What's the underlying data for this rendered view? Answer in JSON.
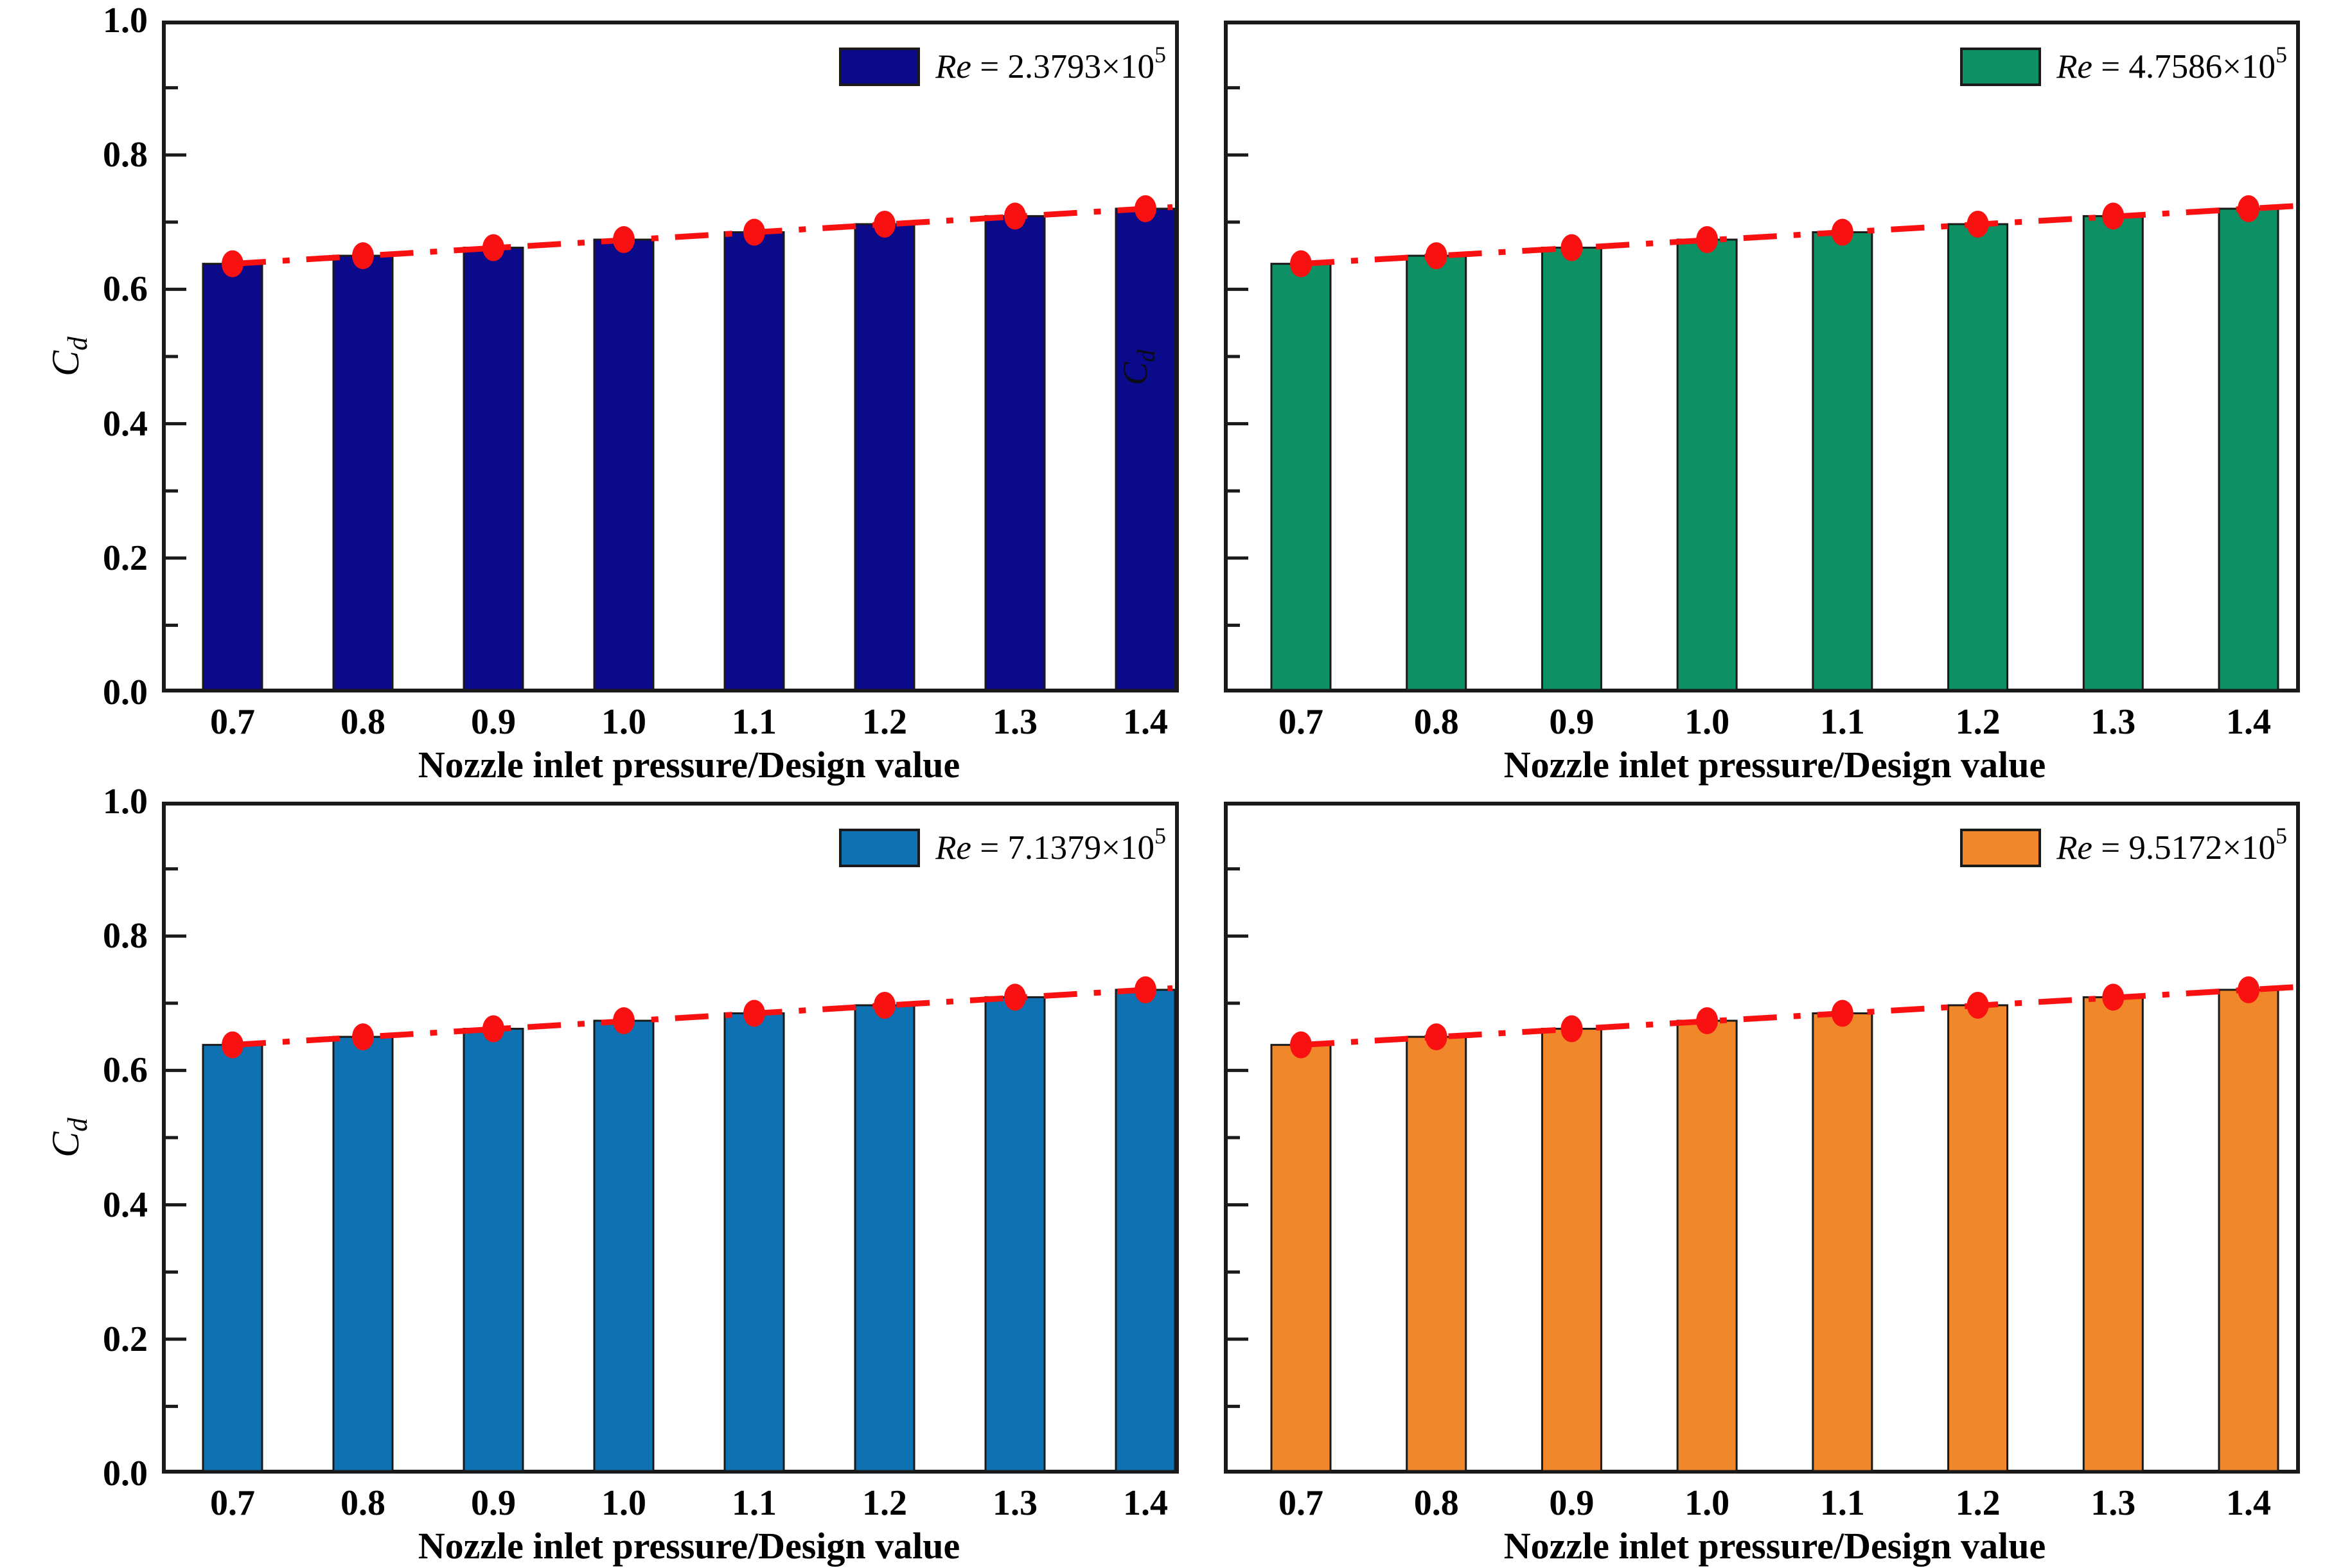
{
  "figure": {
    "background": "#ffffff",
    "frame_color": "#1a1a1a"
  },
  "y_axis": {
    "label_main": "C",
    "label_sub": "d",
    "ticks": [
      "1.0",
      "0.8",
      "0.6",
      "0.4",
      "0.2",
      "0.0"
    ],
    "tick_values": [
      1.0,
      0.8,
      0.6,
      0.4,
      0.2,
      0.0
    ],
    "minor_tick_values": [
      0.9,
      0.7,
      0.5,
      0.3,
      0.1
    ],
    "range": [
      0.0,
      1.0
    ]
  },
  "x_axis": {
    "title": "Nozzle inlet pressure/Design value"
  },
  "artifact": {
    "label_main": "C",
    "label_sub": "d"
  },
  "chart_data": [
    {
      "type": "bar",
      "panel": "top-left",
      "legend": {
        "re": "Re",
        "eq": " = 2.3793×10",
        "exp": "5",
        "full": "Re = 2.3793×10^5"
      },
      "bar_color": "#0a0a8a",
      "bar_edge_color": "#1a1a1a",
      "marker_color": "#f91010",
      "trend_line": {
        "style": "dash-dot",
        "color": "#f91010"
      },
      "categories": [
        "0.7",
        "0.8",
        "0.9",
        "1.0",
        "1.1",
        "1.2",
        "1.3",
        "1.4"
      ],
      "values": [
        0.638,
        0.65,
        0.662,
        0.674,
        0.685,
        0.697,
        0.709,
        0.72
      ],
      "xlabel": "Nozzle inlet pressure/Design value",
      "ylabel": "Cd",
      "ylim": [
        0.0,
        1.0
      ],
      "grid": false,
      "legend_position": "top-right"
    },
    {
      "type": "bar",
      "panel": "top-right",
      "legend": {
        "re": "Re",
        "eq": " = 4.7586×10",
        "exp": "5",
        "full": "Re = 4.7586×10^5"
      },
      "bar_color": "#0e9065",
      "bar_edge_color": "#1a1a1a",
      "marker_color": "#f91010",
      "trend_line": {
        "style": "dash-dot",
        "color": "#f91010"
      },
      "categories": [
        "0.7",
        "0.8",
        "0.9",
        "1.0",
        "1.1",
        "1.2",
        "1.3",
        "1.4"
      ],
      "values": [
        0.638,
        0.65,
        0.662,
        0.674,
        0.685,
        0.697,
        0.709,
        0.72
      ],
      "xlabel": "Nozzle inlet pressure/Design value",
      "ylabel": "Cd",
      "ylim": [
        0.0,
        1.0
      ],
      "grid": false,
      "legend_position": "top-right"
    },
    {
      "type": "bar",
      "panel": "bottom-left",
      "legend": {
        "re": "Re",
        "eq": " = 7.1379×10",
        "exp": "5",
        "full": "Re = 7.1379×10^5"
      },
      "bar_color": "#0e72b2",
      "bar_edge_color": "#1a1a1a",
      "marker_color": "#f91010",
      "trend_line": {
        "style": "dash-dot",
        "color": "#f91010"
      },
      "categories": [
        "0.7",
        "0.8",
        "0.9",
        "1.0",
        "1.1",
        "1.2",
        "1.3",
        "1.4"
      ],
      "values": [
        0.638,
        0.65,
        0.662,
        0.674,
        0.685,
        0.697,
        0.709,
        0.72
      ],
      "xlabel": "Nozzle inlet pressure/Design value",
      "ylabel": "Cd",
      "ylim": [
        0.0,
        1.0
      ],
      "grid": false,
      "legend_position": "top-right"
    },
    {
      "type": "bar",
      "panel": "bottom-right",
      "legend": {
        "re": "Re",
        "eq": " = 9.5172×10",
        "exp": "5",
        "full": "Re = 9.5172×10^5"
      },
      "bar_color": "#f0882b",
      "bar_edge_color": "#1a1a1a",
      "marker_color": "#f91010",
      "trend_line": {
        "style": "dash-dot",
        "color": "#f91010"
      },
      "categories": [
        "0.7",
        "0.8",
        "0.9",
        "1.0",
        "1.1",
        "1.2",
        "1.3",
        "1.4"
      ],
      "values": [
        0.638,
        0.65,
        0.662,
        0.674,
        0.685,
        0.697,
        0.709,
        0.72
      ],
      "xlabel": "Nozzle inlet pressure/Design value",
      "ylabel": "Cd",
      "ylim": [
        0.0,
        1.0
      ],
      "grid": false,
      "legend_position": "top-right"
    }
  ]
}
